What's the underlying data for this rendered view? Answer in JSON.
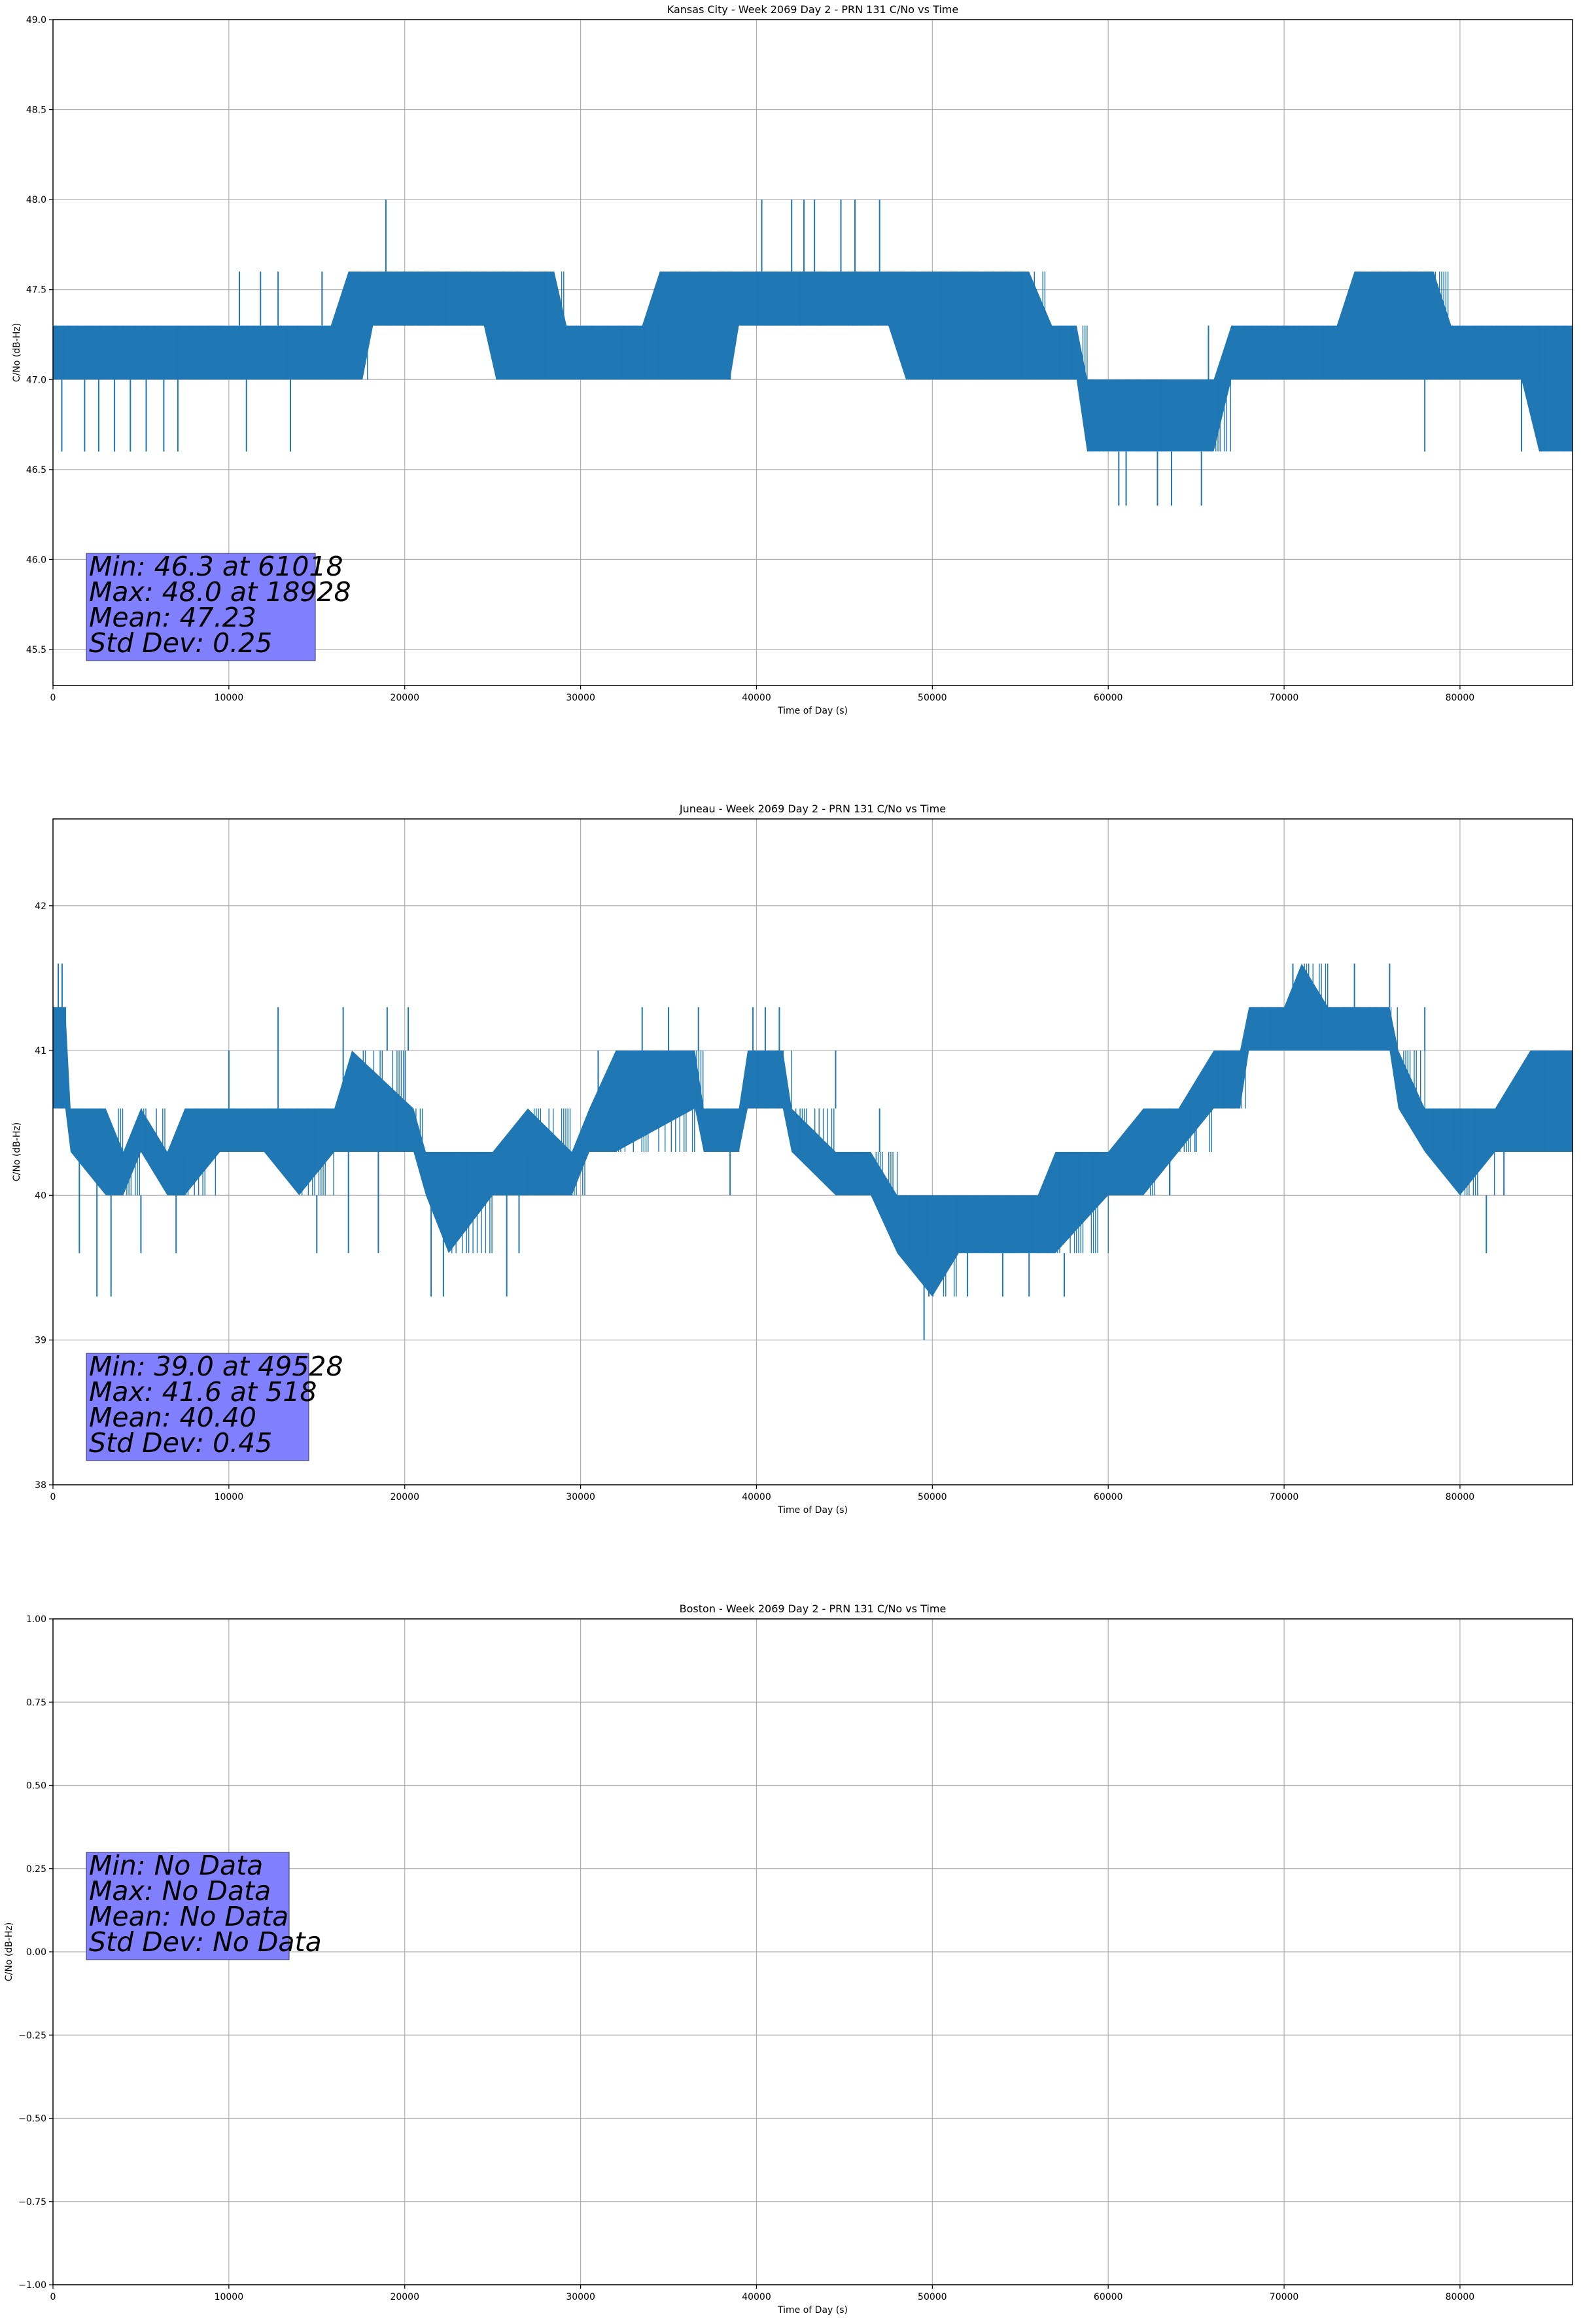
{
  "colors": {
    "line": "#1f77b4",
    "stats_box": "#8080ff",
    "grid": "#b0b0b0",
    "frame": "#000000"
  },
  "chart_data": [
    {
      "type": "line",
      "title": "Kansas City - Week 2069 Day 2 - PRN 131 C/No vs Time",
      "xlabel": "Time of Day (s)",
      "ylabel": "C/No (dB-Hz)",
      "xlim": [
        0,
        86400
      ],
      "ylim": [
        45.3,
        49.0
      ],
      "xticks": [
        0,
        10000,
        20000,
        30000,
        40000,
        50000,
        60000,
        70000,
        80000
      ],
      "xtick_labels": [
        "0",
        "10000",
        "20000",
        "30000",
        "40000",
        "50000",
        "60000",
        "70000",
        "80000"
      ],
      "yticks": [
        45.5,
        46.0,
        46.5,
        47.0,
        47.5,
        48.0,
        48.5,
        49.0
      ],
      "ytick_labels": [
        "45.5",
        "46.0",
        "46.5",
        "47.0",
        "47.5",
        "48.0",
        "48.5",
        "49.0"
      ],
      "grid": true,
      "series": [
        {
          "color": "#1f77b4",
          "band": [
            [
              0,
              47.0,
              47.3
            ],
            [
              9000,
              47.0,
              47.3
            ],
            [
              10500,
              47.0,
              47.3
            ],
            [
              12000,
              47.0,
              47.3
            ],
            [
              14000,
              47.0,
              47.3
            ],
            [
              15800,
              47.0,
              47.3
            ],
            [
              16800,
              47.0,
              47.6
            ],
            [
              17600,
              47.0,
              47.6
            ],
            [
              18200,
              47.3,
              47.6
            ],
            [
              24500,
              47.3,
              47.6
            ],
            [
              25200,
              47.0,
              47.6
            ],
            [
              28500,
              47.0,
              47.6
            ],
            [
              29200,
              47.0,
              47.3
            ],
            [
              33500,
              47.0,
              47.3
            ],
            [
              34500,
              47.0,
              47.6
            ],
            [
              38500,
              47.0,
              47.6
            ],
            [
              39000,
              47.3,
              47.6
            ],
            [
              47500,
              47.3,
              47.6
            ],
            [
              48500,
              47.0,
              47.6
            ],
            [
              55500,
              47.0,
              47.6
            ],
            [
              56800,
              47.0,
              47.3
            ],
            [
              58200,
              47.0,
              47.3
            ],
            [
              58800,
              46.6,
              47.0
            ],
            [
              66000,
              46.6,
              47.0
            ],
            [
              67000,
              47.0,
              47.3
            ],
            [
              73000,
              47.0,
              47.3
            ],
            [
              74000,
              47.0,
              47.6
            ],
            [
              78500,
              47.0,
              47.6
            ],
            [
              79500,
              47.0,
              47.3
            ],
            [
              83500,
              47.0,
              47.3
            ],
            [
              84500,
              46.6,
              47.3
            ],
            [
              86400,
              46.6,
              47.3
            ]
          ],
          "spikes": [
            [
              500,
              46.6
            ],
            [
              1800,
              46.6
            ],
            [
              2600,
              46.6
            ],
            [
              3500,
              46.6
            ],
            [
              4400,
              46.6
            ],
            [
              5300,
              46.6
            ],
            [
              6300,
              46.6
            ],
            [
              7100,
              46.6
            ],
            [
              11000,
              46.6
            ],
            [
              13500,
              46.6
            ],
            [
              10600,
              47.6
            ],
            [
              11800,
              47.6
            ],
            [
              12800,
              47.6
            ],
            [
              15300,
              47.6
            ],
            [
              18928,
              48.0
            ],
            [
              40300,
              48.0
            ],
            [
              42000,
              48.0
            ],
            [
              42700,
              48.0
            ],
            [
              43300,
              48.0
            ],
            [
              44800,
              48.0
            ],
            [
              45600,
              48.0
            ],
            [
              47000,
              48.0
            ],
            [
              50000,
              47.0
            ],
            [
              51400,
              47.0
            ],
            [
              60600,
              46.3
            ],
            [
              61018,
              46.3
            ],
            [
              62800,
              46.3
            ],
            [
              63600,
              46.3
            ],
            [
              65300,
              46.3
            ],
            [
              65700,
              47.3
            ],
            [
              78000,
              46.6
            ],
            [
              83500,
              46.6
            ],
            [
              85000,
              46.6
            ],
            [
              86000,
              46.6
            ]
          ]
        }
      ],
      "stats": [
        "Min: 46.3 at 61018",
        "Max: 48.0 at 18928",
        "Mean: 47.23",
        "Std Dev: 0.25"
      ]
    },
    {
      "type": "line",
      "title": "Juneau - Week 2069 Day 2 - PRN 131 C/No vs Time",
      "xlabel": "Time of Day (s)",
      "ylabel": "C/No (dB-Hz)",
      "xlim": [
        0,
        86400
      ],
      "ylim": [
        38.0,
        42.6
      ],
      "xticks": [
        0,
        10000,
        20000,
        30000,
        40000,
        50000,
        60000,
        70000,
        80000
      ],
      "xtick_labels": [
        "0",
        "10000",
        "20000",
        "30000",
        "40000",
        "50000",
        "60000",
        "70000",
        "80000"
      ],
      "yticks": [
        38,
        39,
        40,
        41,
        42
      ],
      "ytick_labels": [
        "38",
        "39",
        "40",
        "41",
        "42"
      ],
      "grid": true,
      "series": [
        {
          "color": "#1f77b4",
          "band": [
            [
              0,
              40.6,
              41.3
            ],
            [
              700,
              40.6,
              41.3
            ],
            [
              1000,
              40.3,
              40.6
            ],
            [
              3000,
              40.0,
              40.6
            ],
            [
              4000,
              40.0,
              40.3
            ],
            [
              5000,
              40.3,
              40.6
            ],
            [
              6500,
              40.0,
              40.3
            ],
            [
              7500,
              40.0,
              40.6
            ],
            [
              9500,
              40.3,
              40.6
            ],
            [
              12000,
              40.3,
              40.6
            ],
            [
              14000,
              40.0,
              40.6
            ],
            [
              16000,
              40.3,
              40.6
            ],
            [
              17000,
              40.3,
              41.0
            ],
            [
              20500,
              40.3,
              40.6
            ],
            [
              21200,
              40.0,
              40.3
            ],
            [
              22500,
              39.6,
              40.3
            ],
            [
              25000,
              40.0,
              40.3
            ],
            [
              27000,
              40.0,
              40.6
            ],
            [
              29500,
              40.0,
              40.3
            ],
            [
              30500,
              40.3,
              40.6
            ],
            [
              32000,
              40.3,
              41.0
            ],
            [
              36500,
              40.6,
              41.0
            ],
            [
              37000,
              40.3,
              40.6
            ],
            [
              39000,
              40.3,
              40.6
            ],
            [
              39500,
              40.6,
              41.0
            ],
            [
              41500,
              40.6,
              41.0
            ],
            [
              42000,
              40.3,
              40.6
            ],
            [
              44500,
              40.0,
              40.3
            ],
            [
              46500,
              40.0,
              40.3
            ],
            [
              48000,
              39.6,
              40.0
            ],
            [
              50000,
              39.3,
              40.0
            ],
            [
              51500,
              39.6,
              40.0
            ],
            [
              56000,
              39.6,
              40.0
            ],
            [
              57000,
              39.6,
              40.3
            ],
            [
              60000,
              40.0,
              40.3
            ],
            [
              62000,
              40.0,
              40.6
            ],
            [
              64000,
              40.3,
              40.6
            ],
            [
              66000,
              40.6,
              41.0
            ],
            [
              67500,
              40.6,
              41.0
            ],
            [
              68000,
              41.0,
              41.3
            ],
            [
              70000,
              41.0,
              41.3
            ],
            [
              71000,
              41.0,
              41.6
            ],
            [
              72500,
              41.0,
              41.3
            ],
            [
              76000,
              41.0,
              41.3
            ],
            [
              76500,
              40.6,
              41.0
            ],
            [
              78000,
              40.3,
              40.6
            ],
            [
              80000,
              40.0,
              40.6
            ],
            [
              82000,
              40.3,
              40.6
            ],
            [
              84000,
              40.3,
              41.0
            ],
            [
              86400,
              40.3,
              41.0
            ]
          ],
          "spikes": [
            [
              300,
              41.6
            ],
            [
              518,
              41.6
            ],
            [
              2500,
              39.3
            ],
            [
              3300,
              39.3
            ],
            [
              1500,
              39.6
            ],
            [
              5000,
              39.6
            ],
            [
              7000,
              39.6
            ],
            [
              10000,
              41.0
            ],
            [
              12800,
              41.3
            ],
            [
              15000,
              39.6
            ],
            [
              16800,
              39.6
            ],
            [
              18500,
              39.6
            ],
            [
              16500,
              41.3
            ],
            [
              19000,
              41.3
            ],
            [
              20200,
              41.3
            ],
            [
              21500,
              39.3
            ],
            [
              22200,
              39.3
            ],
            [
              25800,
              39.3
            ],
            [
              26500,
              39.6
            ],
            [
              31000,
              41.0
            ],
            [
              33500,
              41.3
            ],
            [
              35000,
              41.3
            ],
            [
              36700,
              41.3
            ],
            [
              38500,
              40.0
            ],
            [
              39800,
              41.3
            ],
            [
              40500,
              41.3
            ],
            [
              41300,
              41.3
            ],
            [
              44500,
              41.0
            ],
            [
              47000,
              40.6
            ],
            [
              49528,
              39.0
            ],
            [
              49800,
              39.3
            ],
            [
              52000,
              39.3
            ],
            [
              54000,
              39.3
            ],
            [
              55500,
              39.3
            ],
            [
              57500,
              39.3
            ],
            [
              63500,
              40.6
            ],
            [
              65000,
              40.6
            ],
            [
              70500,
              41.6
            ],
            [
              74000,
              41.6
            ],
            [
              76000,
              41.6
            ],
            [
              78000,
              41.3
            ],
            [
              81500,
              39.6
            ],
            [
              82500,
              40.0
            ]
          ]
        }
      ],
      "stats": [
        "Min: 39.0 at 49528",
        "Max: 41.6 at 518",
        "Mean: 40.40",
        "Std Dev: 0.45"
      ]
    },
    {
      "type": "line",
      "title": "Boston - Week 2069 Day 2 - PRN 131 C/No vs Time",
      "xlabel": "Time of Day (s)",
      "ylabel": "C/No (dB-Hz)",
      "xlim": [
        0,
        86400
      ],
      "ylim": [
        -1.0,
        1.0
      ],
      "xticks": [
        0,
        10000,
        20000,
        30000,
        40000,
        50000,
        60000,
        70000,
        80000
      ],
      "xtick_labels": [
        "0",
        "10000",
        "20000",
        "30000",
        "40000",
        "50000",
        "60000",
        "70000",
        "80000"
      ],
      "yticks": [
        -1.0,
        -0.75,
        -0.5,
        -0.25,
        0.0,
        0.25,
        0.5,
        0.75,
        1.0
      ],
      "ytick_labels": [
        "−1.00",
        "−0.75",
        "−0.50",
        "−0.25",
        "0.00",
        "0.25",
        "0.50",
        "0.75",
        "1.00"
      ],
      "grid": true,
      "series": [],
      "stats": [
        "Min: No Data",
        "Max: No Data",
        "Mean: No Data",
        "Std Dev: No Data"
      ]
    }
  ]
}
